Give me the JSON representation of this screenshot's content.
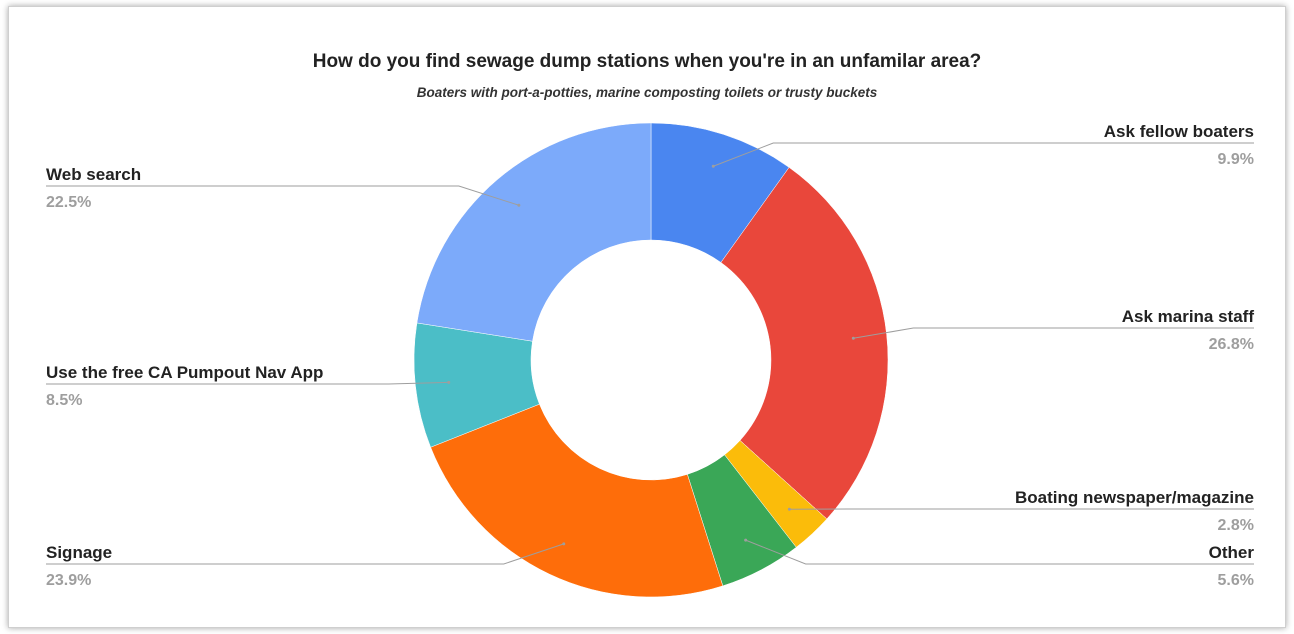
{
  "chart_data": {
    "type": "pie",
    "donut": true,
    "title": "How do you find sewage dump stations when you're in an unfamilar area?",
    "subtitle": "Boaters with port-a-potties, marine composting toilets or trusty buckets",
    "slices": [
      {
        "label": "Ask fellow boaters",
        "value": 9.9,
        "value_label": "9.9%",
        "color": "#4a86f0"
      },
      {
        "label": "Ask marina staff",
        "value": 26.8,
        "value_label": "26.8%",
        "color": "#e9473b"
      },
      {
        "label": "Boating newspaper/magazine",
        "value": 2.8,
        "value_label": "2.8%",
        "color": "#fbbc0a"
      },
      {
        "label": "Other",
        "value": 5.6,
        "value_label": "5.6%",
        "color": "#3aa757"
      },
      {
        "label": "Signage",
        "value": 23.9,
        "value_label": "23.9%",
        "color": "#fe6d0a"
      },
      {
        "label": "Use the free CA Pumpout Nav App",
        "value": 8.5,
        "value_label": "8.5%",
        "color": "#4bbec7"
      },
      {
        "label": "Web search",
        "value": 22.5,
        "value_label": "22.5%",
        "color": "#7caafa"
      }
    ],
    "start_angle_deg": 0,
    "direction": "clockwise",
    "legend": "none (labels beside slices)"
  }
}
